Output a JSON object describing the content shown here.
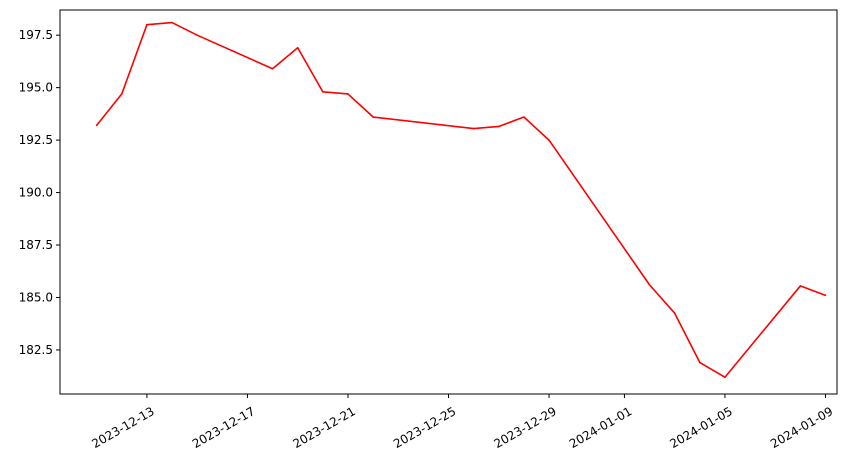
{
  "chart_data": {
    "type": "line",
    "title": "",
    "xlabel": "",
    "ylabel": "",
    "x_axis_kind": "date",
    "xlim": [
      "2023-12-09T13:00",
      "2024-01-09T11:00"
    ],
    "ylim": [
      180.4,
      198.7
    ],
    "grid": false,
    "legend": "none",
    "x_ticks": [
      "2023-12-13",
      "2023-12-17",
      "2023-12-21",
      "2023-12-25",
      "2023-12-29",
      "2024-01-01",
      "2024-01-05",
      "2024-01-09"
    ],
    "y_ticks": [
      182.5,
      185.0,
      187.5,
      190.0,
      192.5,
      195.0,
      197.5
    ],
    "y_tick_labels": [
      "182.5",
      "185.0",
      "187.5",
      "190.0",
      "192.5",
      "195.0",
      "197.5"
    ],
    "series": [
      {
        "name": "",
        "color": "#ff0000",
        "x": [
          "2023-12-11",
          "2023-12-12",
          "2023-12-13",
          "2023-12-14",
          "2023-12-15",
          "2023-12-18",
          "2023-12-19",
          "2023-12-20",
          "2023-12-21",
          "2023-12-22",
          "2023-12-26",
          "2023-12-27",
          "2023-12-28",
          "2023-12-29",
          "2024-01-02",
          "2024-01-03",
          "2024-01-04",
          "2024-01-05",
          "2024-01-08",
          "2024-01-09"
        ],
        "y": [
          193.2,
          194.7,
          198.0,
          198.1,
          197.5,
          195.9,
          196.9,
          194.8,
          194.7,
          193.6,
          193.05,
          193.15,
          193.6,
          192.5,
          185.6,
          184.25,
          181.9,
          181.2,
          185.55,
          185.1
        ]
      }
    ]
  }
}
